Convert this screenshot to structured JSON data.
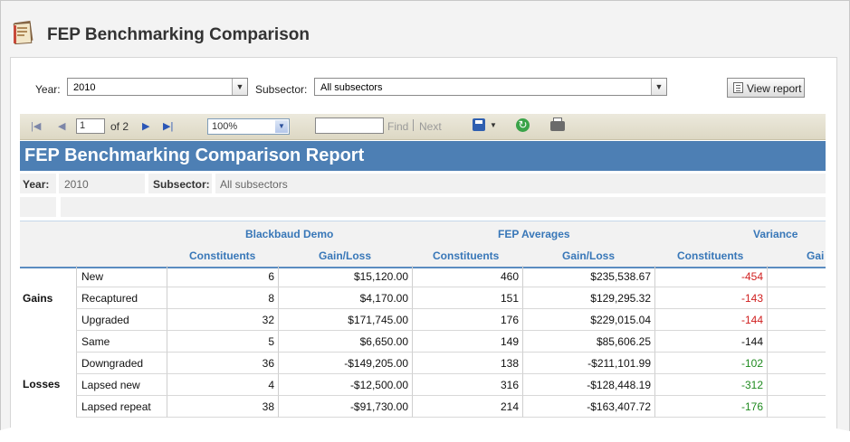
{
  "app": {
    "title": "FEP Benchmarking Comparison"
  },
  "params": {
    "year_label": "Year:",
    "year_value": "2010",
    "subsector_label": "Subsector:",
    "subsector_value": "All subsectors",
    "view_button": "View report"
  },
  "toolbar": {
    "page_value": "1",
    "page_of": "of 2",
    "zoom": "100%",
    "find_value": "",
    "find_label": "Find",
    "next_label": "Next"
  },
  "report": {
    "title": "FEP Benchmarking Comparison Report",
    "year_label": "Year:",
    "year_value": "2010",
    "subsector_label": "Subsector:",
    "subsector_value": "All subsectors",
    "groups": [
      "Blackbaud Demo",
      "FEP Averages",
      "Variance"
    ],
    "columns": [
      "Constituents",
      "Gain/Loss",
      "Constituents",
      "Gain/Loss",
      "Constituents",
      "Gai"
    ],
    "sections": [
      {
        "label": "Gains"
      },
      {
        "label": "Losses"
      }
    ],
    "rows": [
      {
        "label": "New",
        "c1": "6",
        "g1": "$15,120.00",
        "c2": "460",
        "g2": "$235,538.67",
        "vc": "-454",
        "vc_color": "#d02020"
      },
      {
        "label": "Recaptured",
        "c1": "8",
        "g1": "$4,170.00",
        "c2": "151",
        "g2": "$129,295.32",
        "vc": "-143",
        "vc_color": "#d02020"
      },
      {
        "label": "Upgraded",
        "c1": "32",
        "g1": "$171,745.00",
        "c2": "176",
        "g2": "$229,015.04",
        "vc": "-144",
        "vc_color": "#d02020"
      },
      {
        "label": "Same",
        "c1": "5",
        "g1": "$6,650.00",
        "c2": "149",
        "g2": "$85,606.25",
        "vc": "-144",
        "vc_color": "#111111"
      },
      {
        "label": "Downgraded",
        "c1": "36",
        "g1": "-$149,205.00",
        "c2": "138",
        "g2": "-$211,101.99",
        "vc": "-102",
        "vc_color": "#1f8a1f"
      },
      {
        "label": "Lapsed new",
        "c1": "4",
        "g1": "-$12,500.00",
        "c2": "316",
        "g2": "-$128,448.19",
        "vc": "-312",
        "vc_color": "#1f8a1f"
      },
      {
        "label": "Lapsed repeat",
        "c1": "38",
        "g1": "-$91,730.00",
        "c2": "214",
        "g2": "-$163,407.72",
        "vc": "-176",
        "vc_color": "#1f8a1f"
      }
    ]
  }
}
